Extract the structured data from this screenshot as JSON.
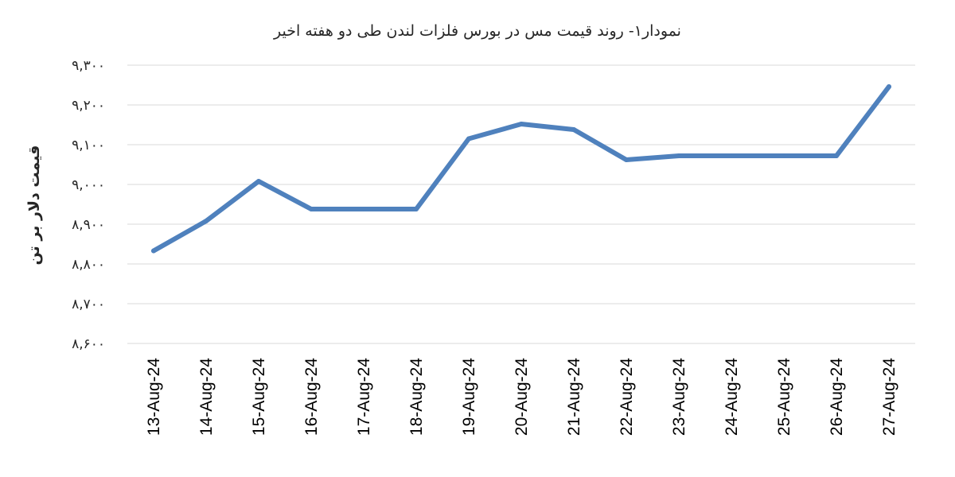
{
  "chart_data": {
    "type": "line",
    "title": "نمودار۱- روند قیمت مس در بورس فلزات لندن طی دو هفته اخیر",
    "ylabel": "قیمت دلار بر تن",
    "xlabel": "",
    "categories": [
      "13-Aug-24",
      "14-Aug-24",
      "15-Aug-24",
      "16-Aug-24",
      "17-Aug-24",
      "18-Aug-24",
      "19-Aug-24",
      "20-Aug-24",
      "21-Aug-24",
      "22-Aug-24",
      "23-Aug-24",
      "24-Aug-24",
      "25-Aug-24",
      "26-Aug-24",
      "27-Aug-24"
    ],
    "y_ticks": [
      {
        "value": 8600,
        "label": "۸,۶۰۰"
      },
      {
        "value": 8700,
        "label": "۸,۷۰۰"
      },
      {
        "value": 8800,
        "label": "۸,۸۰۰"
      },
      {
        "value": 8900,
        "label": "۸,۹۰۰"
      },
      {
        "value": 9000,
        "label": "۹,۰۰۰"
      },
      {
        "value": 9100,
        "label": "۹,۱۰۰"
      },
      {
        "value": 9200,
        "label": "۹,۲۰۰"
      },
      {
        "value": 9300,
        "label": "۹,۳۰۰"
      }
    ],
    "ylim": [
      8600,
      9300
    ],
    "grid": true,
    "series": [
      {
        "color": "#4f81bd",
        "values": [
          8833,
          8908,
          9008,
          8938,
          8938,
          8938,
          9115,
          9152,
          9138,
          9062,
          9072,
          9072,
          9072,
          9072,
          9246
        ]
      }
    ]
  }
}
